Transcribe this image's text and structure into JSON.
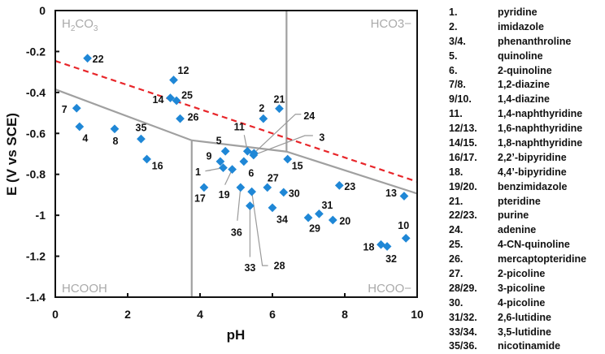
{
  "chart_data": {
    "type": "scatter",
    "xlabel": "pH",
    "ylabel": "E (V vs SCE)",
    "xlim": [
      0,
      10
    ],
    "ylim": [
      -1.4,
      0
    ],
    "xticks": [
      "0",
      "2",
      "4",
      "6",
      "8",
      "10"
    ],
    "yticks": [
      "0",
      "-0.2",
      "-0.4",
      "-0.6",
      "-0.8",
      "-1",
      "-1.2",
      "-1.4"
    ],
    "grid": false,
    "marker_color": "#1f87d6",
    "regions": {
      "top_left": {
        "main": "H",
        "sub": "2",
        "rest": "CO",
        "sub2": "3"
      },
      "top_right": "HCO3−",
      "bottom_left": "HCOOH",
      "bottom_right": "HCOO−"
    },
    "lines": {
      "boundary_color": "#a0a0a0",
      "boundary": [
        [
          0,
          -0.385
        ],
        [
          3.77,
          -0.634
        ],
        [
          6.39,
          -0.689
        ],
        [
          10,
          -0.894
        ]
      ],
      "vertical_low": [
        [
          3.77,
          -0.634
        ],
        [
          3.77,
          -1.4
        ]
      ],
      "vertical_high": [
        [
          6.39,
          0
        ],
        [
          6.39,
          -0.689
        ]
      ],
      "dashed_color": "#e8262a",
      "dashed": [
        [
          0,
          -0.246
        ],
        [
          10,
          -0.836
        ]
      ]
    },
    "points": [
      {
        "label": "1",
        "x": 4.64,
        "y": -0.768
      },
      {
        "label": "2",
        "x": 5.75,
        "y": -0.528
      },
      {
        "label": "3",
        "x": 5.48,
        "y": -0.706
      },
      {
        "label": "4",
        "x": 0.67,
        "y": -0.567
      },
      {
        "label": "5",
        "x": 4.7,
        "y": -0.687
      },
      {
        "label": "6",
        "x": 5.21,
        "y": -0.737
      },
      {
        "label": "7",
        "x": 0.59,
        "y": -0.477
      },
      {
        "label": "8",
        "x": 1.64,
        "y": -0.578
      },
      {
        "label": "9",
        "x": 4.56,
        "y": -0.737
      },
      {
        "label": "10",
        "x": 9.69,
        "y": -1.112
      },
      {
        "label": "11",
        "x": 5.31,
        "y": -0.687
      },
      {
        "label": "12",
        "x": 3.27,
        "y": -0.339
      },
      {
        "label": "13",
        "x": 9.64,
        "y": -0.906
      },
      {
        "label": "14",
        "x": 3.18,
        "y": -0.427
      },
      {
        "label": "15",
        "x": 6.42,
        "y": -0.726
      },
      {
        "label": "16",
        "x": 2.53,
        "y": -0.726
      },
      {
        "label": "17",
        "x": 4.11,
        "y": -0.864
      },
      {
        "label": "18",
        "x": 9.0,
        "y": -1.143
      },
      {
        "label": "19",
        "x": 4.89,
        "y": -0.776
      },
      {
        "label": "20",
        "x": 7.67,
        "y": -1.023
      },
      {
        "label": "21",
        "x": 6.19,
        "y": -0.479
      },
      {
        "label": "22",
        "x": 0.89,
        "y": -0.233
      },
      {
        "label": "23",
        "x": 7.85,
        "y": -0.854
      },
      {
        "label": "24",
        "x": 5.49,
        "y": -0.697
      },
      {
        "label": "25",
        "x": 3.35,
        "y": -0.44
      },
      {
        "label": "26",
        "x": 3.45,
        "y": -0.528
      },
      {
        "label": "27",
        "x": 5.86,
        "y": -0.864
      },
      {
        "label": "28",
        "x": 5.43,
        "y": -0.885
      },
      {
        "label": "29",
        "x": 6.99,
        "y": -1.012
      },
      {
        "label": "30",
        "x": 6.31,
        "y": -0.888
      },
      {
        "label": "31",
        "x": 7.29,
        "y": -0.993
      },
      {
        "label": "32",
        "x": 9.17,
        "y": -1.152
      },
      {
        "label": "33",
        "x": 5.38,
        "y": -0.954
      },
      {
        "label": "34",
        "x": 6.0,
        "y": -0.963
      },
      {
        "label": "35",
        "x": 2.37,
        "y": -0.627
      },
      {
        "label": "36",
        "x": 5.12,
        "y": -0.864
      }
    ]
  },
  "legend": [
    {
      "num": "1.",
      "name": "pyridine"
    },
    {
      "num": "2.",
      "name": "imidazole"
    },
    {
      "num": "3/4.",
      "name": "phenanthroline"
    },
    {
      "num": "5.",
      "name": "quinoline"
    },
    {
      "num": "6.",
      "name": "2-quinoline"
    },
    {
      "num": "7/8.",
      "name": "1,2-diazine"
    },
    {
      "num": "9/10.",
      "name": "1,4-diazine"
    },
    {
      "num": "11.",
      "name": "1,4-naphthyridine"
    },
    {
      "num": "12/13.",
      "name": "1,6-naphthyridine"
    },
    {
      "num": "14/15.",
      "name": "1,8-naphthyridine"
    },
    {
      "num": "16/17.",
      "name": "2,2’-bipyridine"
    },
    {
      "num": "18.",
      "name": "4,4’-bipyridine"
    },
    {
      "num": "19/20.",
      "name": "benzimidazole"
    },
    {
      "num": "21.",
      "name": "pteridine"
    },
    {
      "num": "22/23.",
      "name": "purine"
    },
    {
      "num": "24.",
      "name": "adenine"
    },
    {
      "num": "25.",
      "name": "4-CN-quinoline"
    },
    {
      "num": "26.",
      "name": "mercaptopteridine"
    },
    {
      "num": "27.",
      "name": "2-picoline"
    },
    {
      "num": "28/29.",
      "name": "3-picoline"
    },
    {
      "num": "30.",
      "name": "4-picoline"
    },
    {
      "num": "31/32.",
      "name": "2,6-lutidine"
    },
    {
      "num": "33/34.",
      "name": "3,5-lutidine"
    },
    {
      "num": "35/36.",
      "name": "nicotinamide"
    }
  ]
}
